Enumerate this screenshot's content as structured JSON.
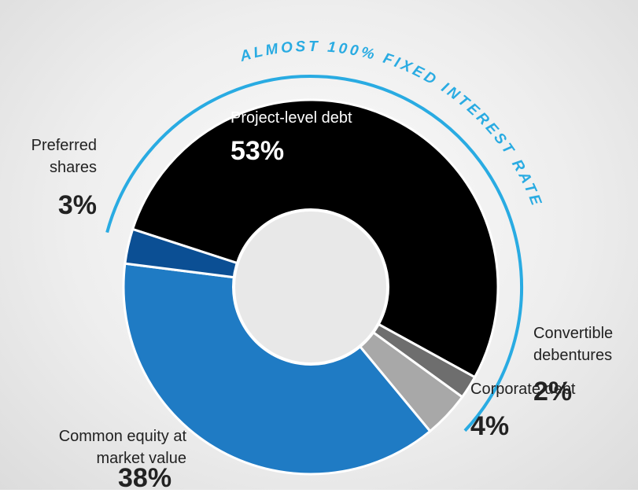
{
  "chart_data": {
    "type": "donut",
    "annotation": "ALMOST 100% FIXED INTEREST RATE",
    "annotation_color": "#29abe2",
    "categories": [
      "Project-level debt",
      "Convertible debentures",
      "Corporate debt",
      "Common equity at market value",
      "Preferred shares"
    ],
    "values": [
      53,
      2,
      4,
      38,
      3
    ],
    "value_labels": [
      "53%",
      "2%",
      "4%",
      "38%",
      "3%"
    ],
    "colors": [
      "#000000",
      "#6e6e6e",
      "#a8a8a8",
      "#1f7bc4",
      "#0b4f94"
    ]
  }
}
